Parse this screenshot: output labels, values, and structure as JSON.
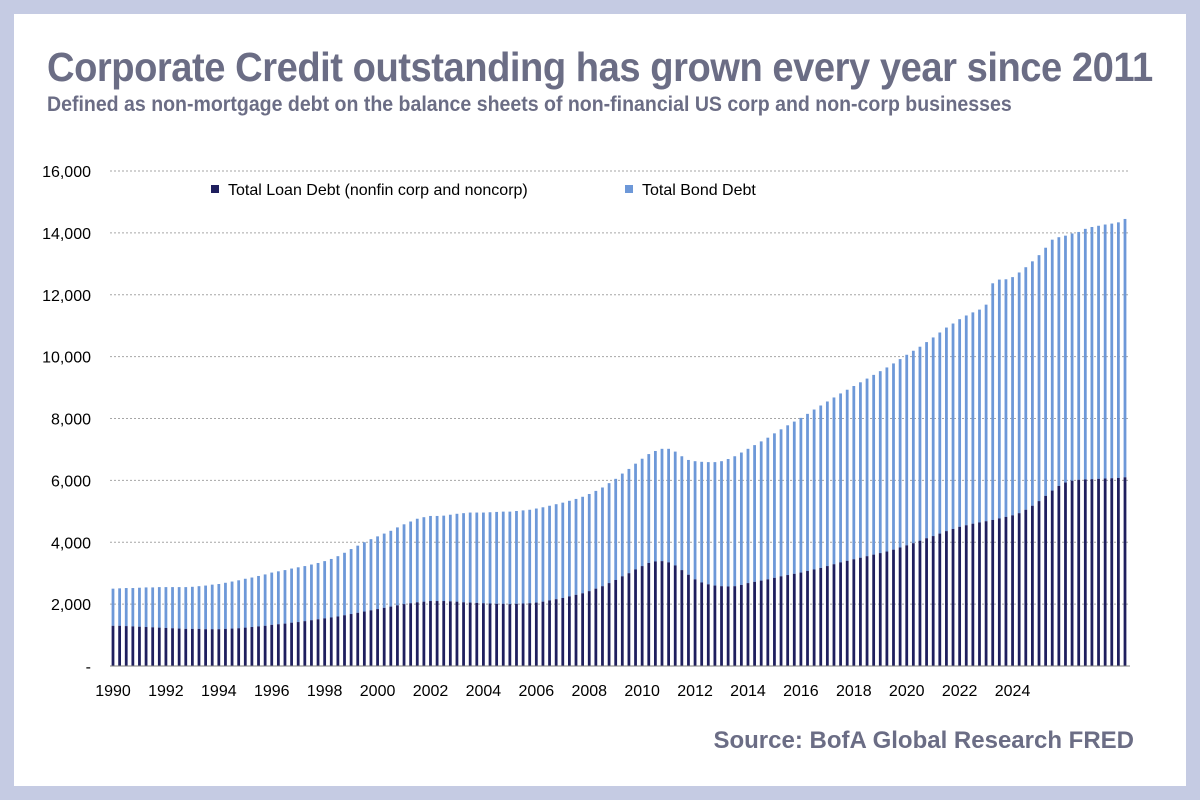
{
  "title": "Corporate Credit outstanding has grown every year since 2011",
  "subtitle": "Defined as non-mortgage debt on the balance sheets of non-financial US corp and non-corp businesses",
  "source": "Source: BofA Global Research FRED",
  "colors": {
    "loan": "#1f1f5e",
    "bond": "#6d98d8",
    "grid": "#a6a6a6",
    "text": "#6b6d85",
    "background": "#c5cbe3"
  },
  "chart_data": {
    "type": "bar",
    "stacked": true,
    "grid": true,
    "legend_position": "top",
    "ylim": [
      0,
      16000
    ],
    "y_ticks": [
      {
        "value": 0,
        "label": "-"
      },
      {
        "value": 2000,
        "label": "2,000"
      },
      {
        "value": 4000,
        "label": "4,000"
      },
      {
        "value": 6000,
        "label": "6,000"
      },
      {
        "value": 8000,
        "label": "8,000"
      },
      {
        "value": 10000,
        "label": "10,000"
      },
      {
        "value": 12000,
        "label": "12,000"
      },
      {
        "value": 14000,
        "label": "14,000"
      },
      {
        "value": 16000,
        "label": "16,000"
      }
    ],
    "x_tick_labels": [
      "1990",
      "1992",
      "1994",
      "1996",
      "1998",
      "2000",
      "2002",
      "2004",
      "2006",
      "2008",
      "2010",
      "2012",
      "2014",
      "2016",
      "2018",
      "2020",
      "2022",
      "2024"
    ],
    "x_start": "1990-Q1",
    "x_end": "2024-Q2",
    "series": [
      {
        "name": "Total Loan Debt (nonfin corp and noncorp)",
        "color": "#1f1f5e",
        "values": [
          1300,
          1300,
          1290,
          1280,
          1270,
          1260,
          1250,
          1240,
          1230,
          1220,
          1210,
          1200,
          1200,
          1200,
          1190,
          1190,
          1190,
          1200,
          1210,
          1220,
          1240,
          1260,
          1280,
          1300,
          1330,
          1350,
          1370,
          1400,
          1420,
          1450,
          1480,
          1510,
          1540,
          1570,
          1600,
          1640,
          1680,
          1720,
          1760,
          1800,
          1840,
          1880,
          1920,
          1960,
          2000,
          2030,
          2060,
          2080,
          2100,
          2100,
          2100,
          2090,
          2080,
          2060,
          2050,
          2040,
          2030,
          2020,
          2010,
          2010,
          2000,
          2010,
          2020,
          2030,
          2050,
          2080,
          2120,
          2160,
          2200,
          2250,
          2300,
          2350,
          2420,
          2500,
          2580,
          2680,
          2780,
          2900,
          3000,
          3120,
          3230,
          3330,
          3380,
          3390,
          3350,
          3250,
          3100,
          2950,
          2800,
          2700,
          2640,
          2600,
          2580,
          2570,
          2580,
          2620,
          2680,
          2720,
          2760,
          2800,
          2850,
          2900,
          2940,
          2980,
          3020,
          3070,
          3120,
          3170,
          3230,
          3290,
          3350,
          3400,
          3450,
          3500,
          3550,
          3600,
          3650,
          3700,
          3760,
          3830,
          3900,
          3970,
          4050,
          4130,
          4200,
          4280,
          4360,
          4430,
          4500,
          4550,
          4600,
          4640,
          4680,
          4720,
          4770,
          4820,
          4870,
          4940,
          5050,
          5180,
          5330,
          5500,
          5670,
          5820,
          5930,
          5990,
          6020,
          6030,
          6040,
          6050,
          6060,
          6070,
          6080,
          6100
        ]
      },
      {
        "name": "Total Bond Debt",
        "color": "#6d98d8",
        "values": [
          1200,
          1210,
          1230,
          1240,
          1260,
          1280,
          1290,
          1310,
          1320,
          1330,
          1340,
          1350,
          1360,
          1380,
          1410,
          1440,
          1460,
          1490,
          1520,
          1550,
          1580,
          1600,
          1630,
          1660,
          1690,
          1710,
          1730,
          1750,
          1770,
          1780,
          1800,
          1820,
          1850,
          1890,
          1950,
          2020,
          2100,
          2170,
          2240,
          2300,
          2350,
          2400,
          2450,
          2520,
          2580,
          2640,
          2700,
          2730,
          2750,
          2750,
          2760,
          2800,
          2840,
          2880,
          2910,
          2920,
          2930,
          2950,
          2970,
          2980,
          2990,
          3000,
          3010,
          3020,
          3040,
          3050,
          3060,
          3070,
          3080,
          3090,
          3100,
          3120,
          3140,
          3160,
          3190,
          3230,
          3270,
          3320,
          3370,
          3420,
          3470,
          3520,
          3570,
          3630,
          3670,
          3680,
          3680,
          3710,
          3820,
          3900,
          3950,
          3990,
          4040,
          4120,
          4200,
          4280,
          4340,
          4420,
          4500,
          4580,
          4670,
          4750,
          4840,
          4920,
          5000,
          5080,
          5170,
          5250,
          5320,
          5390,
          5460,
          5530,
          5600,
          5670,
          5740,
          5810,
          5880,
          5950,
          6020,
          6090,
          6160,
          6220,
          6270,
          6340,
          6420,
          6500,
          6580,
          6640,
          6710,
          6780,
          6830,
          6880,
          7000,
          7650,
          7720,
          7680,
          7700,
          7780,
          7840,
          7900,
          7950,
          8020,
          8110,
          8040,
          7980,
          7990,
          8010,
          8100,
          8150,
          8180,
          8210,
          8230,
          8260,
          8350
        ]
      }
    ]
  }
}
